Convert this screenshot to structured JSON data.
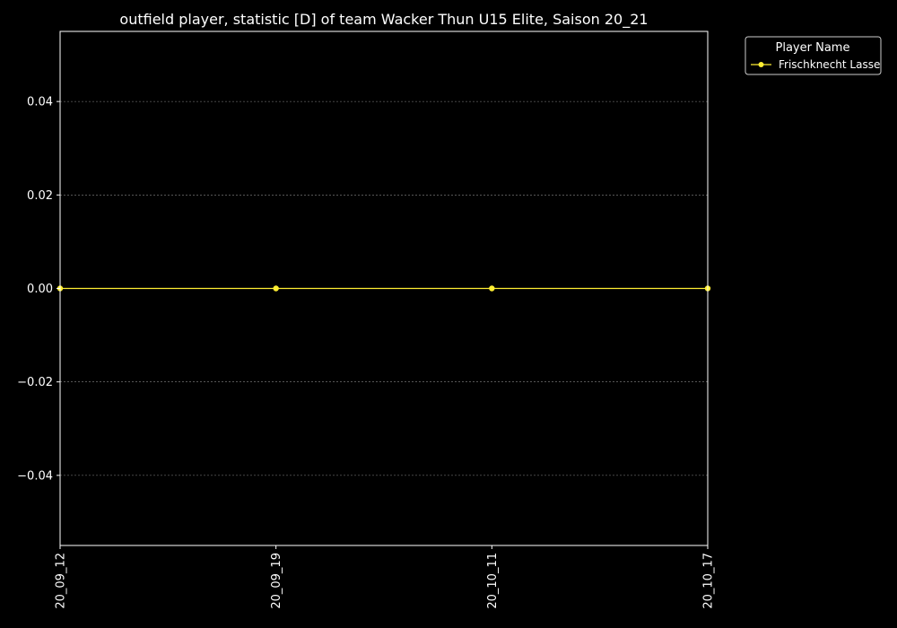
{
  "chart_data": {
    "type": "line",
    "title": "outfield player, statistic [D] of team Wacker Thun U15 Elite, Saison 20_21",
    "xlabel": "",
    "ylabel": "",
    "categories": [
      "20_09_12",
      "20_09_19",
      "20_10_11",
      "20_10_17"
    ],
    "series": [
      {
        "name": "Frischknecht Lasse",
        "values": [
          0,
          0,
          0,
          0
        ],
        "color": "#ffee33"
      }
    ],
    "ylim": [
      -0.055,
      0.055
    ],
    "yticks": [
      0.04,
      0.02,
      0.0,
      -0.02,
      -0.04
    ],
    "ytick_labels": [
      "0.04",
      "0.02",
      "0.00",
      "−0.02",
      "−0.04"
    ],
    "grid": true,
    "legend": {
      "title": "Player Name",
      "placement": "outside-top-right"
    },
    "colors": {
      "background": "#000000",
      "axes": "#ffffff",
      "grid": "#8a8a8a",
      "text": "#ffffff"
    }
  }
}
